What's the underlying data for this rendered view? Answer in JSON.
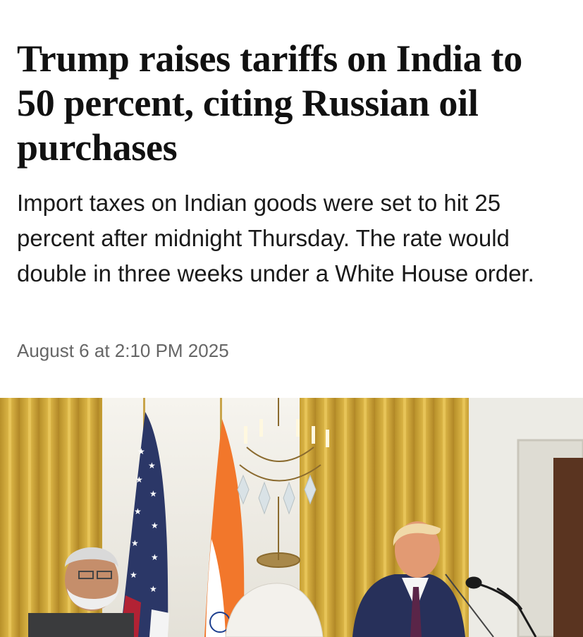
{
  "article": {
    "headline": "Trump raises tariffs on India to 50 percent, citing Russian oil purchases",
    "dek": "Import taxes on Indian goods were set to hit 25 percent after midnight Thursday. The rate would double in three weeks under a White House order.",
    "dateline": "August 6 at 2:10 PM 2025"
  },
  "photo": {
    "icons": [
      "american-flag",
      "indian-flag",
      "chandelier",
      "microphone"
    ],
    "colors": {
      "curtain": "#c9a22e",
      "wall": "#f1efe8",
      "flag_red": "#b22234",
      "flag_navy": "#2b3767",
      "saffron": "#f2772b",
      "suit": "#27305a"
    }
  }
}
